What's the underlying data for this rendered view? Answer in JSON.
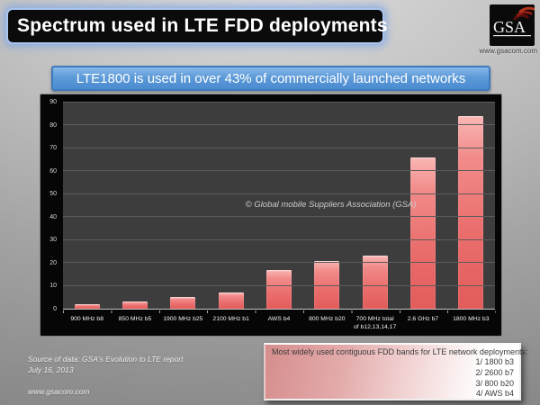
{
  "header": {
    "title": "Spectrum used in LTE FDD deployments",
    "logo": {
      "text": "GSA",
      "website": "www.gsacom.com"
    }
  },
  "subtitle": "LTE1800 is used in over 43% of commercially launched networks",
  "chart_data": {
    "type": "bar",
    "title": "",
    "categories": [
      "900 MHz b8",
      "850 MHz b5",
      "1900 MHz b25",
      "2100 MHz b1",
      "AWS b4",
      "800 MHz b20",
      "700 MHz total of b12,13,14,17",
      "2.6 GHz b7",
      "1800 MHz b3"
    ],
    "values": [
      2,
      3,
      5,
      7,
      17,
      21,
      23,
      66,
      84
    ],
    "xlabel": "",
    "ylabel": "",
    "ylim": [
      0,
      90
    ],
    "ytick_step": 10,
    "grid": true,
    "legend_position": "none",
    "annotation": "© Global mobile Suppliers Association (GSA)"
  },
  "footer": {
    "source_line1": "Source of data: GSA's Evolution to LTE report",
    "source_line2": "July 16, 2013",
    "website": "www.gsacom.com"
  },
  "legend_box": {
    "title": "Most widely used contiguous FDD bands for LTE network deployments:",
    "items": [
      "1/ 1800 b3",
      "2/ 2600 b7",
      "3/ 800 b20",
      "4/ AWS b4"
    ]
  },
  "colors": {
    "bar": "#ee7d7d",
    "plot_background": "#3d3d3d",
    "chart_background": "#060606",
    "subtitle_blue": "#5b9bd5",
    "logo_arc_red": "#a32020",
    "legend_pink": "#d68d8d"
  }
}
